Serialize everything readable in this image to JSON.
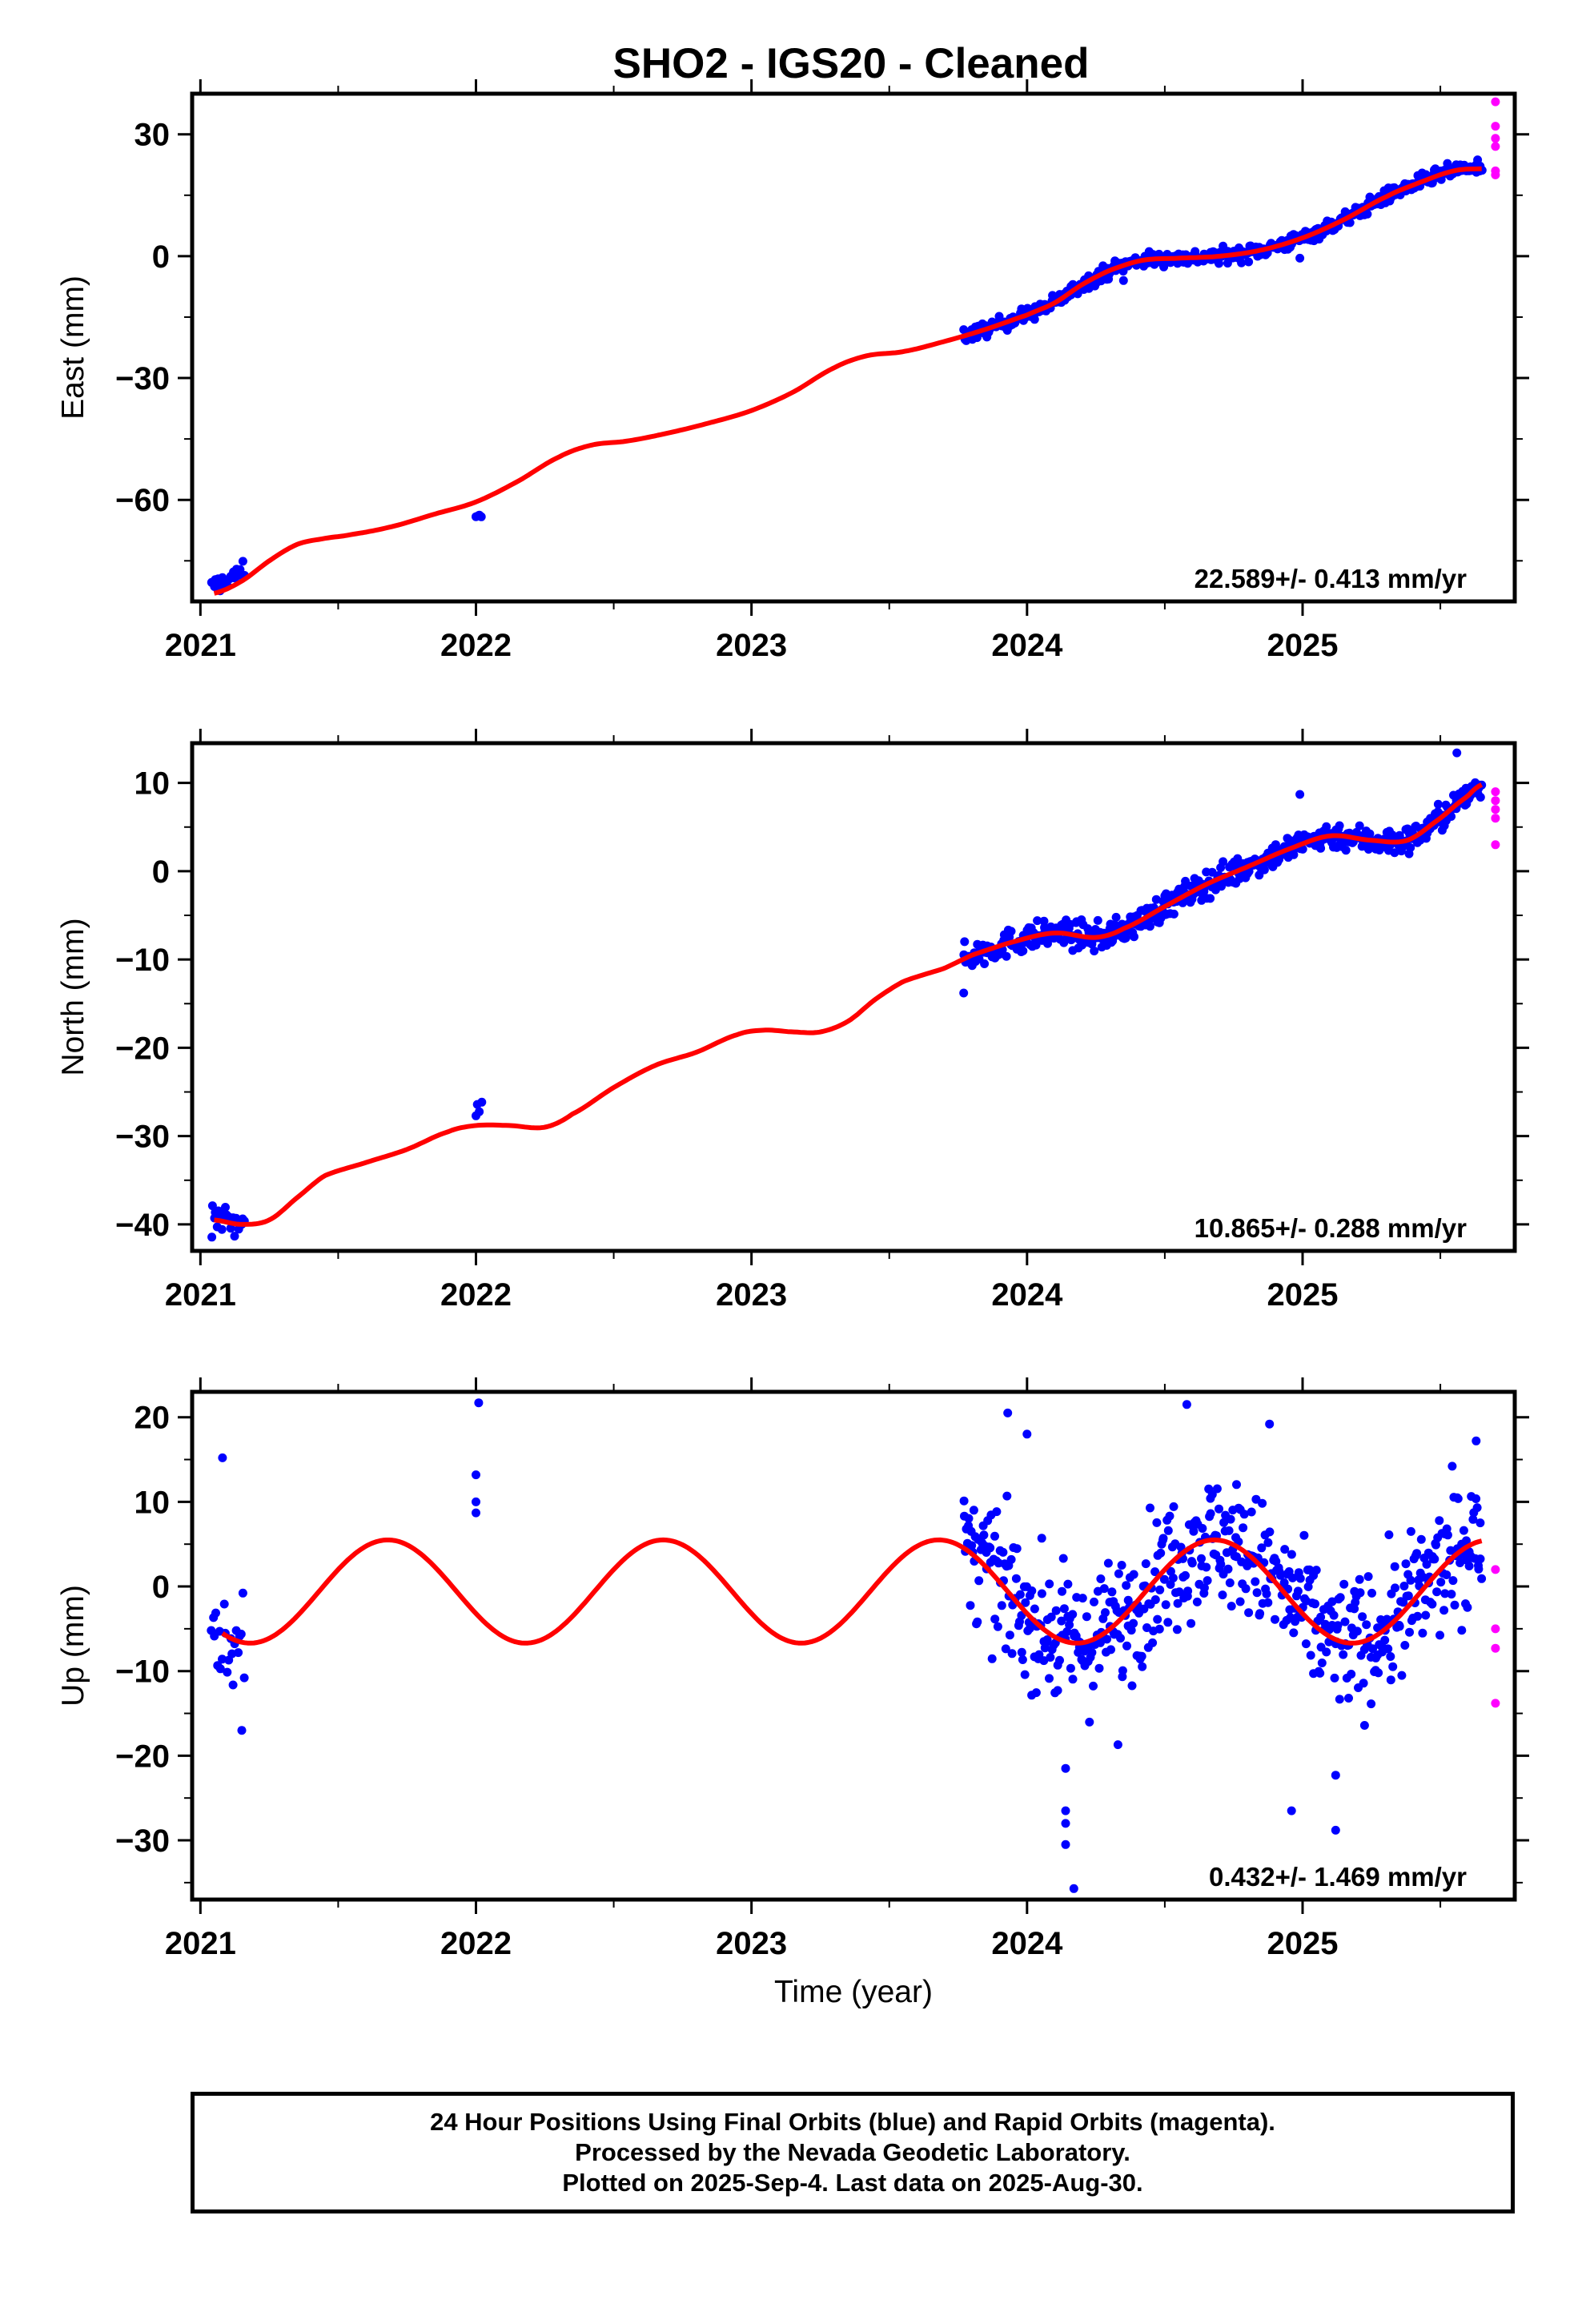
{
  "chart_data": [
    {
      "type": "scatter",
      "title": "SHO2  - IGS20 - Cleaned",
      "ylabel": "East (mm)",
      "xlabel": "",
      "xlim": [
        2020.97,
        2025.77
      ],
      "ylim": [
        -85,
        40
      ],
      "xticks": [
        2021,
        2022,
        2023,
        2024,
        2025
      ],
      "xtick_labels": [
        "2021",
        "2022",
        "2023",
        "2024",
        "2025"
      ],
      "yticks": [
        -60,
        -30,
        0,
        30
      ],
      "ytick_labels": [
        "−60",
        "−30",
        "0",
        "30"
      ],
      "rate_label": "22.589+/- 0.413 mm/yr",
      "fit": {
        "color": "#ff0000",
        "x": [
          2021.05,
          2021.15,
          2021.25,
          2021.35,
          2021.45,
          2021.55,
          2021.7,
          2021.85,
          2022.0,
          2022.15,
          2022.3,
          2022.42,
          2022.55,
          2022.7,
          2022.85,
          2023.0,
          2023.15,
          2023.3,
          2023.42,
          2023.55,
          2023.7,
          2023.85,
          2024.0,
          2024.1,
          2024.2,
          2024.3,
          2024.42,
          2024.55,
          2024.7,
          2024.85,
          2025.0,
          2025.15,
          2025.3,
          2025.42,
          2025.55,
          2025.65
        ],
        "y": [
          -83,
          -80,
          -75,
          -71,
          -69.5,
          -68.5,
          -66.5,
          -63.5,
          -60.5,
          -55.5,
          -49.5,
          -46.5,
          -45.5,
          -43.5,
          -41,
          -38,
          -33.5,
          -27.5,
          -24.5,
          -23.5,
          -21,
          -18,
          -14.5,
          -11.5,
          -7,
          -3.5,
          -1,
          -0.5,
          0,
          1.5,
          4.5,
          9,
          14.5,
          18,
          21,
          21.5
        ]
      },
      "final_orbits": {
        "color": "#0000ff",
        "clusters": [
          {
            "x_start": 2021.04,
            "x_end": 2021.16,
            "y_start": -81.5,
            "y_end": -77.5,
            "spread": 1.6,
            "count": 25
          },
          {
            "x_start": 2022.0,
            "x_end": 2022.02,
            "y_start": -64.5,
            "y_end": -63.5,
            "spread": 0.6,
            "count": 4
          },
          {
            "x_start": 2023.77,
            "x_end": 2025.65,
            "follow_fit": true,
            "spread": 1.3,
            "count": 520
          }
        ],
        "outliers": [
          {
            "x": 2024.35,
            "y": -6
          },
          {
            "x": 2024.99,
            "y": -0.5
          }
        ]
      },
      "rapid_orbits": {
        "color": "#ff00ff",
        "points": [
          {
            "x": 2025.7,
            "y": 38
          },
          {
            "x": 2025.7,
            "y": 32
          },
          {
            "x": 2025.7,
            "y": 29
          },
          {
            "x": 2025.7,
            "y": 27
          },
          {
            "x": 2025.7,
            "y": 21
          },
          {
            "x": 2025.7,
            "y": 20
          }
        ]
      }
    },
    {
      "type": "scatter",
      "title": "",
      "ylabel": "North (mm)",
      "xlabel": "",
      "xlim": [
        2020.97,
        2025.77
      ],
      "ylim": [
        -43,
        14.5
      ],
      "xticks": [
        2021,
        2022,
        2023,
        2024,
        2025
      ],
      "xtick_labels": [
        "2021",
        "2022",
        "2023",
        "2024",
        "2025"
      ],
      "yticks": [
        -40,
        -30,
        -20,
        -10,
        0,
        10
      ],
      "ytick_labels": [
        "−40",
        "−30",
        "−20",
        "−10",
        "0",
        "10"
      ],
      "rate_label": "10.865+/- 0.288 mm/yr",
      "fit": {
        "color": "#ff0000",
        "x": [
          2021.05,
          2021.15,
          2021.25,
          2021.35,
          2021.45,
          2021.6,
          2021.75,
          2021.9,
          2022.0,
          2022.12,
          2022.25,
          2022.35,
          2022.5,
          2022.65,
          2022.8,
          2022.95,
          2023.05,
          2023.15,
          2023.25,
          2023.35,
          2023.45,
          2023.55,
          2023.7,
          2023.8,
          2023.95,
          2024.1,
          2024.25,
          2024.35,
          2024.5,
          2024.65,
          2024.8,
          2024.95,
          2025.1,
          2025.25,
          2025.38,
          2025.5,
          2025.6,
          2025.65
        ],
        "y": [
          -39.5,
          -40,
          -39.5,
          -37,
          -34.5,
          -33,
          -31.5,
          -29.5,
          -28.8,
          -28.8,
          -29,
          -27.5,
          -24.5,
          -22,
          -20.5,
          -18.5,
          -18,
          -18.2,
          -18.2,
          -17,
          -14.5,
          -12.5,
          -11,
          -9.5,
          -8,
          -7,
          -7.5,
          -6.5,
          -4,
          -1.5,
          0.5,
          2.5,
          4,
          3.5,
          3.5,
          6,
          8.5,
          9.8
        ]
      },
      "final_orbits": {
        "color": "#0000ff",
        "clusters": [
          {
            "x_start": 2021.04,
            "x_end": 2021.16,
            "y_start": -40,
            "y_end": -39,
            "spread": 1.4,
            "count": 25
          },
          {
            "x_start": 2022.0,
            "x_end": 2022.02,
            "y_start": -27.5,
            "y_end": -26.5,
            "spread": 0.8,
            "count": 4
          },
          {
            "x_start": 2023.77,
            "x_end": 2025.65,
            "follow_fit": true,
            "spread": 1.1,
            "count": 520
          }
        ],
        "outliers": [
          {
            "x": 2025.56,
            "y": 13.4
          },
          {
            "x": 2024.99,
            "y": 8.7
          },
          {
            "x": 2023.77,
            "y": -13.8
          }
        ]
      },
      "rapid_orbits": {
        "color": "#ff00ff",
        "points": [
          {
            "x": 2025.7,
            "y": 9
          },
          {
            "x": 2025.7,
            "y": 8
          },
          {
            "x": 2025.7,
            "y": 7
          },
          {
            "x": 2025.7,
            "y": 6
          },
          {
            "x": 2025.7,
            "y": 3
          }
        ]
      }
    },
    {
      "type": "scatter",
      "title": "",
      "ylabel": "Up (mm)",
      "xlabel": "Time (year)",
      "xlim": [
        2020.97,
        2025.77
      ],
      "ylim": [
        -37,
        23
      ],
      "xticks": [
        2021,
        2022,
        2023,
        2024,
        2025
      ],
      "xtick_labels": [
        "2021",
        "2022",
        "2023",
        "2024",
        "2025"
      ],
      "yticks": [
        -30,
        -20,
        -10,
        0,
        10,
        20
      ],
      "ytick_labels": [
        "−30",
        "−20",
        "−10",
        "0",
        "10",
        "20"
      ],
      "rate_label": "0.432+/- 1.469 mm/yr",
      "fit": {
        "color": "#ff0000",
        "model": "sinusoid",
        "x_start": 2021.08,
        "x_end": 2025.65,
        "offset": -0.6,
        "amplitude": 6.1,
        "peak_year_fraction": 0.68,
        "period_years": 1.0
      },
      "final_orbits": {
        "color": "#0000ff",
        "clusters": [
          {
            "x_start": 2021.04,
            "x_end": 2021.16,
            "follow_fit": true,
            "spread": 4,
            "count": 22
          },
          {
            "x_start": 2023.77,
            "x_end": 2025.65,
            "follow_fit": true,
            "spread": 5.5,
            "count": 560
          }
        ],
        "outliers": [
          {
            "x": 2021.08,
            "y": 15.2
          },
          {
            "x": 2021.15,
            "y": -17
          },
          {
            "x": 2022.01,
            "y": 21.7
          },
          {
            "x": 2022.0,
            "y": 13.2
          },
          {
            "x": 2022.0,
            "y": 10
          },
          {
            "x": 2022.0,
            "y": 8.7
          },
          {
            "x": 2023.93,
            "y": 20.5
          },
          {
            "x": 2024.0,
            "y": 18
          },
          {
            "x": 2024.14,
            "y": -21.5
          },
          {
            "x": 2024.14,
            "y": -26.5
          },
          {
            "x": 2024.14,
            "y": -28
          },
          {
            "x": 2024.14,
            "y": -30.5
          },
          {
            "x": 2024.17,
            "y": -35.7
          },
          {
            "x": 2024.33,
            "y": -18.7
          },
          {
            "x": 2024.58,
            "y": 21.5
          },
          {
            "x": 2024.88,
            "y": 19.2
          },
          {
            "x": 2024.96,
            "y": -26.5
          },
          {
            "x": 2025.12,
            "y": -22.3
          },
          {
            "x": 2025.12,
            "y": -28.8
          },
          {
            "x": 2025.63,
            "y": 17.2
          }
        ]
      },
      "rapid_orbits": {
        "color": "#ff00ff",
        "points": [
          {
            "x": 2025.7,
            "y": 2
          },
          {
            "x": 2025.7,
            "y": -5
          },
          {
            "x": 2025.7,
            "y": -7.3
          },
          {
            "x": 2025.7,
            "y": -13.8
          }
        ]
      }
    }
  ],
  "footer": {
    "line1": "24 Hour Positions Using Final Orbits (blue) and Rapid Orbits (magenta).",
    "line2": "Processed by the Nevada Geodetic Laboratory.",
    "line3": "Plotted on 2025-Sep-4. Last data on 2025-Aug-30."
  }
}
